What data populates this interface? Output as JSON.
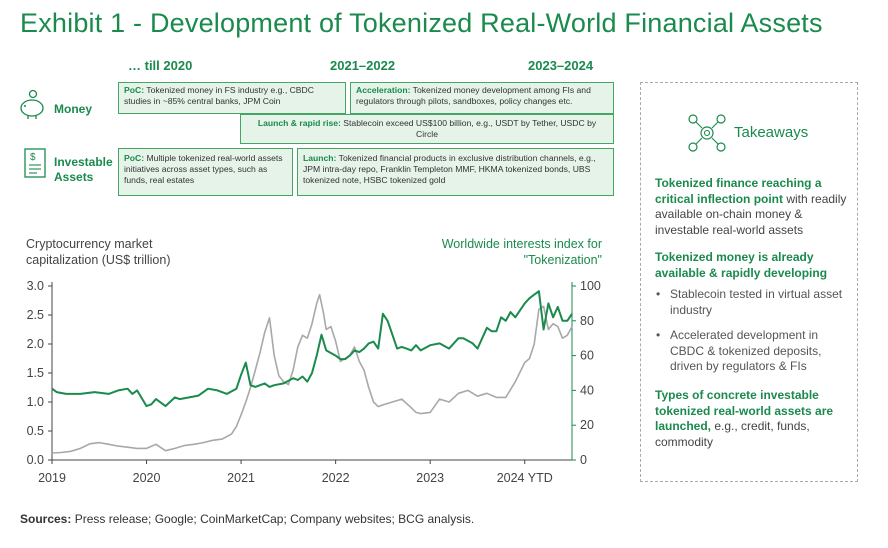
{
  "title": "Exhibit 1 - Development of Tokenized Real-World Financial Assets",
  "periods": [
    "… till 2020",
    "2021–2022",
    "2023–2024"
  ],
  "rows": {
    "money": "Money",
    "investable": "Investable Assets"
  },
  "boxes": {
    "money_poc": {
      "head": "PoC:",
      "text": " Tokenized money in FS industry e.g., CBDC studies in ~85% central banks, JPM Coin"
    },
    "money_accel": {
      "head": "Acceleration:",
      "text": " Tokenized money development among FIs and regulators through pilots, sandboxes, policy changes etc."
    },
    "money_launch": {
      "head": "Launch & rapid rise:",
      "text": " Stablecoin exceed US$100 billion, e.g., USDT by Tether, USDC by Circle"
    },
    "assets_poc": {
      "head": "PoC:",
      "text": " Multiple tokenized real-world assets initiatives across asset types, such as funds, real estates"
    },
    "assets_launch": {
      "head": "Launch:",
      "text": " Tokenized financial products in exclusive distribution channels, e.g., JPM intra-day repo, Franklin Templeton MMF, HKMA tokenized bonds, UBS tokenized note, HSBC tokenized gold"
    }
  },
  "chart_data": {
    "type": "line",
    "left_axis_title": "Cryptocurrency market capitalization (US$ trillion)",
    "right_axis_title": "Worldwide interests index for \"Tokenization\"",
    "x_ticks": [
      "2019",
      "2020",
      "2021",
      "2022",
      "2023",
      "2024 YTD"
    ],
    "y_left_ticks": [
      "0.0",
      "0.5",
      "1.0",
      "1.5",
      "2.0",
      "2.5",
      "3.0"
    ],
    "y_right_ticks": [
      "0",
      "20",
      "40",
      "60",
      "80",
      "100"
    ],
    "ylim_left": [
      0,
      3.0
    ],
    "ylim_right": [
      0,
      100
    ],
    "xlim": [
      2019.0,
      2024.5
    ],
    "grid": false,
    "series": [
      {
        "axis": "left",
        "color": "#a8a8a8",
        "x": [
          2019.0,
          2019.1,
          2019.2,
          2019.3,
          2019.4,
          2019.5,
          2019.6,
          2019.7,
          2019.8,
          2019.9,
          2020.0,
          2020.1,
          2020.2,
          2020.3,
          2020.4,
          2020.5,
          2020.6,
          2020.7,
          2020.8,
          2020.9,
          2020.95,
          2021.0,
          2021.05,
          2021.1,
          2021.15,
          2021.2,
          2021.25,
          2021.3,
          2021.35,
          2021.4,
          2021.45,
          2021.5,
          2021.55,
          2021.6,
          2021.65,
          2021.7,
          2021.75,
          2021.8,
          2021.83,
          2021.87,
          2021.9,
          2021.95,
          2022.0,
          2022.05,
          2022.1,
          2022.15,
          2022.2,
          2022.25,
          2022.3,
          2022.35,
          2022.4,
          2022.45,
          2022.5,
          2022.6,
          2022.7,
          2022.8,
          2022.85,
          2022.9,
          2023.0,
          2023.1,
          2023.2,
          2023.3,
          2023.4,
          2023.5,
          2023.6,
          2023.7,
          2023.8,
          2023.9,
          2024.0,
          2024.05,
          2024.1,
          2024.15,
          2024.2,
          2024.25,
          2024.3,
          2024.35,
          2024.4,
          2024.45,
          2024.5
        ],
        "values": [
          0.12,
          0.13,
          0.15,
          0.2,
          0.28,
          0.3,
          0.27,
          0.24,
          0.22,
          0.2,
          0.2,
          0.27,
          0.16,
          0.2,
          0.25,
          0.27,
          0.3,
          0.34,
          0.36,
          0.45,
          0.58,
          0.78,
          1.0,
          1.25,
          1.55,
          1.85,
          2.2,
          2.45,
          1.8,
          1.45,
          1.35,
          1.3,
          1.55,
          1.95,
          2.15,
          2.1,
          2.35,
          2.7,
          2.85,
          2.55,
          2.25,
          2.3,
          2.05,
          1.7,
          1.75,
          1.8,
          1.95,
          1.7,
          1.55,
          1.25,
          1.0,
          0.92,
          0.95,
          1.0,
          1.05,
          0.9,
          0.82,
          0.8,
          0.82,
          1.05,
          1.0,
          1.15,
          1.2,
          1.1,
          1.15,
          1.08,
          1.08,
          1.35,
          1.68,
          1.75,
          2.0,
          2.6,
          2.65,
          2.25,
          2.35,
          2.3,
          2.1,
          2.15,
          2.3
        ]
      },
      {
        "axis": "right",
        "color": "#1a8a4d",
        "x": [
          2019.0,
          2019.05,
          2019.15,
          2019.3,
          2019.45,
          2019.6,
          2019.7,
          2019.8,
          2019.85,
          2019.9,
          2020.0,
          2020.05,
          2020.1,
          2020.2,
          2020.3,
          2020.35,
          2020.45,
          2020.55,
          2020.65,
          2020.75,
          2020.85,
          2020.95,
          2021.0,
          2021.05,
          2021.1,
          2021.15,
          2021.2,
          2021.25,
          2021.3,
          2021.35,
          2021.45,
          2021.55,
          2021.6,
          2021.65,
          2021.7,
          2021.75,
          2021.8,
          2021.85,
          2021.9,
          2022.0,
          2022.05,
          2022.1,
          2022.15,
          2022.2,
          2022.25,
          2022.3,
          2022.35,
          2022.4,
          2022.45,
          2022.5,
          2022.55,
          2022.6,
          2022.65,
          2022.7,
          2022.75,
          2022.8,
          2022.85,
          2022.9,
          2023.0,
          2023.1,
          2023.2,
          2023.3,
          2023.35,
          2023.45,
          2023.5,
          2023.55,
          2023.6,
          2023.65,
          2023.7,
          2023.75,
          2023.8,
          2023.85,
          2023.9,
          2024.0,
          2024.05,
          2024.1,
          2024.15,
          2024.2,
          2024.25,
          2024.3,
          2024.35,
          2024.4,
          2024.45,
          2024.5
        ],
        "values": [
          41,
          39,
          38,
          38,
          39,
          38,
          40,
          41,
          38,
          40,
          31,
          32,
          35,
          31,
          36,
          35,
          36,
          37,
          41,
          40,
          38,
          41,
          49,
          56,
          43,
          42,
          43,
          44,
          42,
          43,
          44,
          47,
          46,
          48,
          45,
          50,
          60,
          72,
          63,
          60,
          58,
          58,
          60,
          63,
          62,
          64,
          67,
          68,
          64,
          84,
          80,
          72,
          64,
          65,
          64,
          63,
          66,
          63,
          66,
          67,
          64,
          70,
          70,
          67,
          64,
          70,
          76,
          74,
          74,
          82,
          80,
          85,
          82,
          90,
          93,
          95,
          97,
          75,
          90,
          82,
          88,
          80,
          80,
          84
        ]
      }
    ]
  },
  "takeaways": {
    "title": "Takeaways",
    "b1_hl": "Tokenized finance reaching a critical inflection point",
    "b1_rest": " with readily available on-chain money & investable real-world assets",
    "b2_hl": "Tokenized money is already available & rapidly developing",
    "bullet1": "Stablecoin tested in virtual asset industry",
    "bullet2": "Accelerated development in CBDC & tokenized deposits, driven by regulators & FIs",
    "b3_hl": "Types of concrete investable tokenized real-world assets are launched,",
    "b3_rest": " e.g., credit, funds, commodity"
  },
  "sources": {
    "label": "Sources:",
    "text": " Press release; Google; CoinMarketCap; Company websites; BCG analysis."
  },
  "colors": {
    "accent": "#1a8a4d",
    "box_fill": "#e5f3e8",
    "crypto_line": "#a8a8a8"
  }
}
